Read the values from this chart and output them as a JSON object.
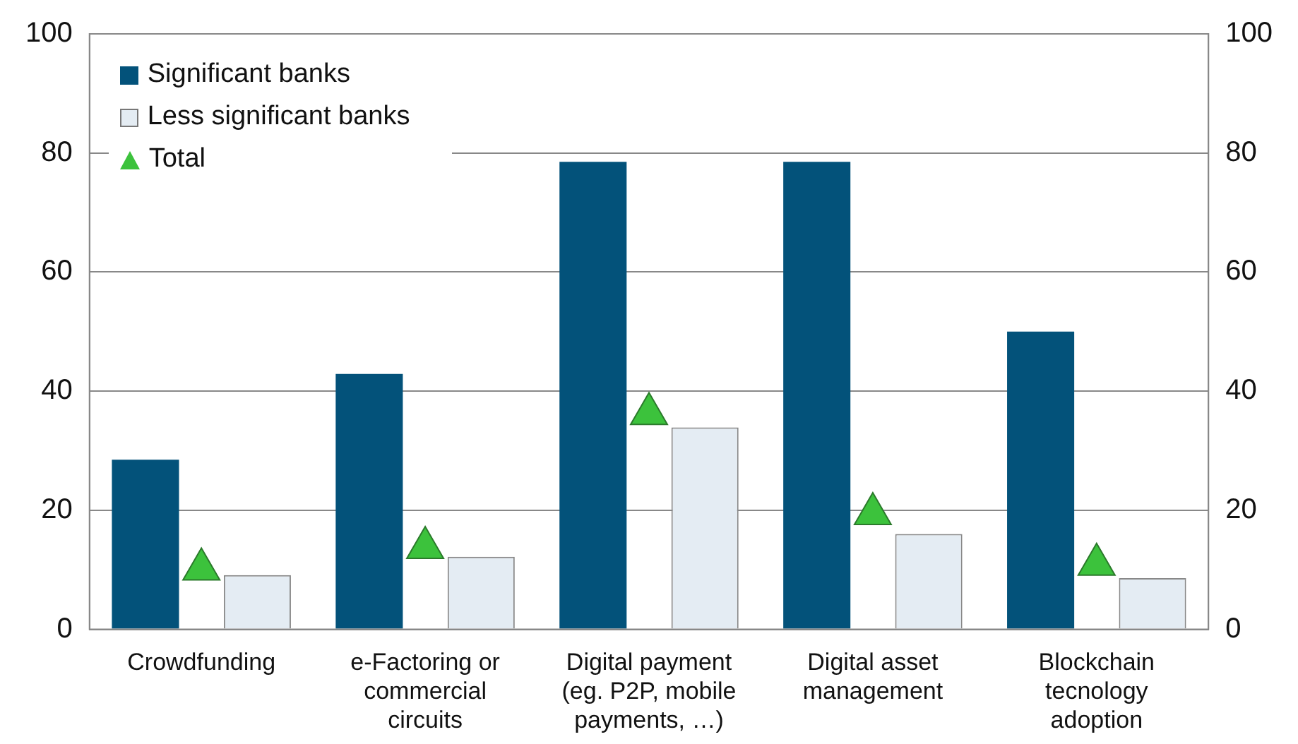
{
  "chart_data": {
    "type": "bar",
    "categories": [
      "Crowdfunding",
      "e-Factoring or commercial circuits",
      "Digital payment (eg. P2P, mobile payments, …)",
      "Digital asset management",
      "Blockchain tecnology adoption"
    ],
    "series": [
      {
        "name": "Significant banks",
        "color": "#03527a",
        "values": [
          28.5,
          42.9,
          78.5,
          78.5,
          50.0
        ]
      },
      {
        "name": "Less significant banks",
        "color": "#e4ecf3",
        "values": [
          9.1,
          12.2,
          33.9,
          16.0,
          8.6
        ]
      },
      {
        "name": "Total",
        "type": "scatter",
        "marker": "triangle",
        "color": "#3cc23c",
        "values": [
          10.1,
          13.7,
          36.2,
          19.4,
          10.9
        ]
      }
    ],
    "ylim": [
      0,
      100
    ],
    "yticks": [
      0,
      20,
      40,
      60,
      80,
      100
    ],
    "y2lim": [
      0,
      100
    ],
    "y2ticks": [
      0,
      20,
      40,
      60,
      80,
      100
    ],
    "grid": "y",
    "legend": "top left"
  }
}
